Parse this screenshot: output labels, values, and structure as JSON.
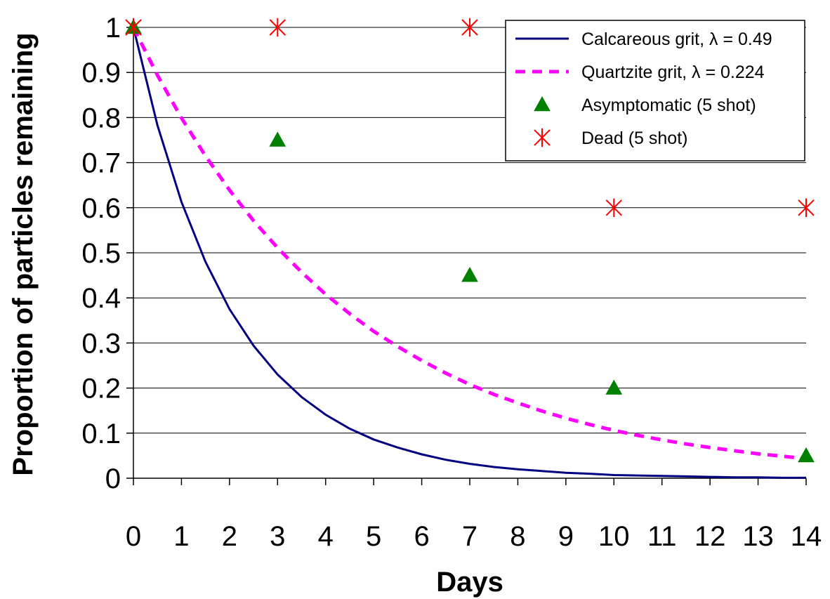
{
  "chart_data": {
    "type": "line",
    "xlabel": "Days",
    "ylabel": "Proportion of particles remaining",
    "xlim": [
      0,
      14
    ],
    "ylim": [
      0,
      1
    ],
    "x_ticks": [
      0,
      1,
      2,
      3,
      4,
      5,
      6,
      7,
      8,
      9,
      10,
      11,
      12,
      13,
      14
    ],
    "y_ticks": [
      0,
      0.1,
      0.2,
      0.3,
      0.4,
      0.5,
      0.6,
      0.7,
      0.8,
      0.9,
      1
    ],
    "y_tick_labels": [
      "0",
      "0.1",
      "0.2",
      "0.3",
      "0.4",
      "0.5",
      "0.6",
      "0.7",
      "0.8",
      "0.9",
      "1"
    ],
    "grid": "horizontal",
    "legend_position": "top-right",
    "series": [
      {
        "name": "Calcareous grit, λ = 0.49",
        "kind": "line",
        "style": "solid",
        "color": "#000080",
        "x": [
          0,
          0.5,
          1,
          1.5,
          2,
          2.5,
          3,
          3.5,
          4,
          4.5,
          5,
          5.5,
          6,
          6.5,
          7,
          7.5,
          8,
          8.5,
          9,
          9.5,
          10,
          10.5,
          11,
          11.5,
          12,
          12.5,
          13,
          13.5,
          14
        ],
        "y": [
          1,
          0.783,
          0.613,
          0.48,
          0.375,
          0.294,
          0.23,
          0.18,
          0.141,
          0.11,
          0.086,
          0.068,
          0.053,
          0.041,
          0.032,
          0.025,
          0.02,
          0.016,
          0.012,
          0.01,
          0.007,
          0.006,
          0.005,
          0.004,
          0.003,
          0.002,
          0.002,
          0.001,
          0.001
        ]
      },
      {
        "name": "Quartzite grit, λ = 0.224",
        "kind": "line",
        "style": "dashed",
        "color": "#ff00ff",
        "x": [
          0,
          0.5,
          1,
          1.5,
          2,
          2.5,
          3,
          3.5,
          4,
          4.5,
          5,
          5.5,
          6,
          6.5,
          7,
          7.5,
          8,
          8.5,
          9,
          9.5,
          10,
          10.5,
          11,
          11.5,
          12,
          12.5,
          13,
          13.5,
          14
        ],
        "y": [
          1,
          0.894,
          0.799,
          0.715,
          0.639,
          0.571,
          0.511,
          0.457,
          0.408,
          0.365,
          0.326,
          0.292,
          0.261,
          0.233,
          0.208,
          0.186,
          0.167,
          0.149,
          0.133,
          0.119,
          0.106,
          0.095,
          0.085,
          0.076,
          0.068,
          0.061,
          0.054,
          0.049,
          0.043
        ]
      },
      {
        "name": "Asymptomatic (5 shot)",
        "kind": "scatter",
        "marker": "triangle",
        "color": "#008000",
        "x": [
          0,
          3,
          7,
          10,
          14
        ],
        "y": [
          1,
          0.75,
          0.45,
          0.2,
          0.05
        ]
      },
      {
        "name": "Dead (5 shot)",
        "kind": "scatter",
        "marker": "asterisk",
        "color": "#ff0000",
        "x": [
          0,
          3,
          7,
          10,
          14
        ],
        "y": [
          1,
          1,
          1,
          0.6,
          0.6
        ]
      }
    ]
  }
}
